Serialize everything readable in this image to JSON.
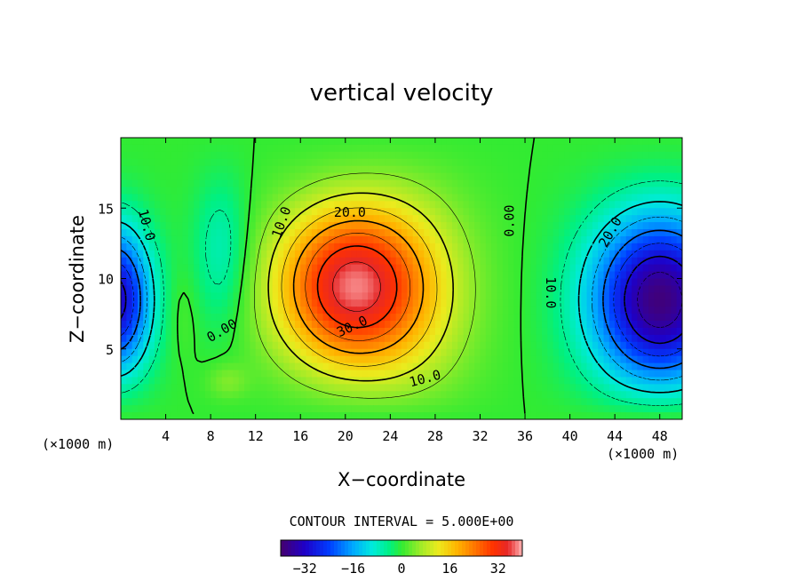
{
  "chart_data": {
    "type": "heatmap",
    "title": "vertical velocity",
    "xlabel": "X−coordinate",
    "ylabel": "Z−coordinate",
    "x_unit_left": "(×1000 m)",
    "x_unit_right": "(×1000 m)",
    "xlim": [
      0,
      50
    ],
    "ylim": [
      0,
      20
    ],
    "xticks": [
      4,
      8,
      12,
      16,
      20,
      24,
      28,
      32,
      36,
      40,
      44,
      48
    ],
    "yticks": [
      5,
      10,
      15
    ],
    "contour_interval_text": "CONTOUR INTERVAL = 5.000E+00",
    "contour_interval": 5,
    "colorbar": {
      "range": [
        -40,
        40
      ],
      "ticks": [
        -32,
        -16,
        0,
        16,
        32
      ],
      "tick_labels": [
        "−32",
        "−16",
        "0",
        "16",
        "32"
      ]
    },
    "contour_labels": [
      {
        "text": "10.0",
        "x": 2.3,
        "z": 13.8,
        "angle": 75
      },
      {
        "text": "0.00",
        "x": 9.0,
        "z": 6.3,
        "angle": -30
      },
      {
        "text": "10.0",
        "x": 14.3,
        "z": 14.0,
        "angle": -70
      },
      {
        "text": "20.0",
        "x": 20.4,
        "z": 14.7,
        "angle": 0
      },
      {
        "text": "30.0",
        "x": 20.6,
        "z": 6.6,
        "angle": -25
      },
      {
        "text": "10.0",
        "x": 27.1,
        "z": 2.9,
        "angle": -15
      },
      {
        "text": "0.00",
        "x": 34.6,
        "z": 14.1,
        "angle": -90
      },
      {
        "text": "10.0",
        "x": 38.3,
        "z": 9.0,
        "angle": 90
      },
      {
        "text": "20.0",
        "x": 43.6,
        "z": 13.3,
        "angle": -60
      }
    ],
    "extrema": {
      "max": 35,
      "max_at": {
        "x": 20,
        "z": 9
      },
      "min": -38,
      "min_at": {
        "x": 47.5,
        "z": 8.5
      }
    }
  }
}
